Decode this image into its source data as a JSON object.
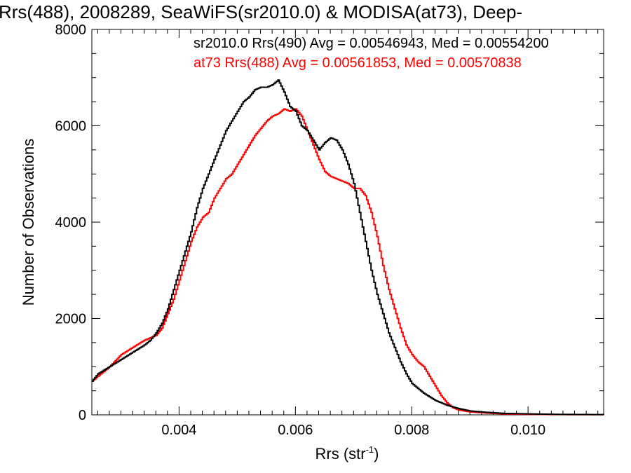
{
  "chart_data": {
    "type": "line",
    "title": "Rrs(488), 2008289, SeaWiFS(sr2010.0) & MODISA(at73), Deep-",
    "xlabel": "Rrs (str",
    "xlabel_sup": "-1",
    "xlabel_close": ")",
    "ylabel": "Number of Observations",
    "xlim": [
      0.0025,
      0.0113
    ],
    "ylim": [
      0,
      8000
    ],
    "x_ticks": [
      0.004,
      0.006,
      0.008,
      0.01
    ],
    "x_tick_labels": [
      "0.004",
      "0.006",
      "0.008",
      "0.010"
    ],
    "y_ticks": [
      0,
      2000,
      4000,
      6000,
      8000
    ],
    "y_tick_labels": [
      "0",
      "2000",
      "4000",
      "6000",
      "8000"
    ],
    "grid": false,
    "legend_position": "top-right",
    "series": [
      {
        "name": "sr2010.0 Rrs(490) Avg = 0.00546943, Med = 0.00554200",
        "color": "#000000",
        "x": [
          0.0025,
          0.0026,
          0.0028,
          0.003,
          0.0032,
          0.0034,
          0.0035,
          0.0036,
          0.0037,
          0.0038,
          0.0039,
          0.004,
          0.0041,
          0.0042,
          0.0043,
          0.0044,
          0.0045,
          0.0046,
          0.0047,
          0.0048,
          0.0049,
          0.005,
          0.0051,
          0.0052,
          0.0053,
          0.0054,
          0.0055,
          0.0056,
          0.0057,
          0.0058,
          0.0059,
          0.006,
          0.0061,
          0.0062,
          0.0063,
          0.0064,
          0.0065,
          0.0066,
          0.0067,
          0.0068,
          0.0069,
          0.007,
          0.0071,
          0.0072,
          0.0073,
          0.0074,
          0.0075,
          0.0076,
          0.0077,
          0.0078,
          0.0079,
          0.008,
          0.0082,
          0.0084,
          0.0086,
          0.0088,
          0.009,
          0.0093,
          0.0096,
          0.01,
          0.0105,
          0.0113
        ],
        "y": [
          700,
          850,
          1000,
          1150,
          1300,
          1450,
          1550,
          1700,
          1900,
          2200,
          2600,
          3000,
          3400,
          3800,
          4300,
          4700,
          5000,
          5300,
          5600,
          5900,
          6100,
          6300,
          6500,
          6600,
          6750,
          6800,
          6800,
          6850,
          6950,
          6700,
          6400,
          6300,
          6000,
          5900,
          5700,
          5500,
          5650,
          5750,
          5700,
          5500,
          5200,
          4800,
          4200,
          3600,
          3000,
          2500,
          2100,
          1700,
          1400,
          1100,
          850,
          650,
          450,
          300,
          200,
          130,
          80,
          50,
          30,
          20,
          10,
          5
        ]
      },
      {
        "name": "at73 Rrs(488) Avg = 0.00561853, Med = 0.00570838",
        "color": "#ff0000",
        "x": [
          0.0025,
          0.0026,
          0.0028,
          0.003,
          0.0032,
          0.0034,
          0.0035,
          0.0036,
          0.0037,
          0.0038,
          0.0039,
          0.004,
          0.0041,
          0.0042,
          0.0043,
          0.0044,
          0.0045,
          0.0046,
          0.0047,
          0.0048,
          0.0049,
          0.005,
          0.0051,
          0.0052,
          0.0053,
          0.0054,
          0.0055,
          0.0056,
          0.0057,
          0.0058,
          0.0059,
          0.006,
          0.0061,
          0.0062,
          0.0063,
          0.0064,
          0.0065,
          0.0066,
          0.0067,
          0.0068,
          0.0069,
          0.007,
          0.0071,
          0.0072,
          0.0073,
          0.0074,
          0.0075,
          0.0076,
          0.0077,
          0.0078,
          0.0079,
          0.008,
          0.0081,
          0.0082,
          0.0083,
          0.0084,
          0.0085,
          0.0086,
          0.0087,
          0.0088,
          0.009,
          0.0093,
          0.0096,
          0.01,
          0.0105,
          0.0113
        ],
        "y": [
          700,
          800,
          1000,
          1250,
          1400,
          1550,
          1600,
          1650,
          1800,
          2100,
          2400,
          2800,
          3200,
          3600,
          3900,
          4100,
          4200,
          4500,
          4700,
          4900,
          5000,
          5200,
          5400,
          5600,
          5800,
          5950,
          6100,
          6200,
          6250,
          6350,
          6300,
          6350,
          6200,
          5900,
          5600,
          5300,
          5050,
          4950,
          4900,
          4850,
          4800,
          4700,
          4700,
          4550,
          4200,
          3700,
          3100,
          2600,
          2200,
          1800,
          1450,
          1250,
          1100,
          1000,
          800,
          600,
          400,
          250,
          150,
          100,
          60,
          35,
          20,
          10,
          5,
          3
        ]
      }
    ]
  }
}
